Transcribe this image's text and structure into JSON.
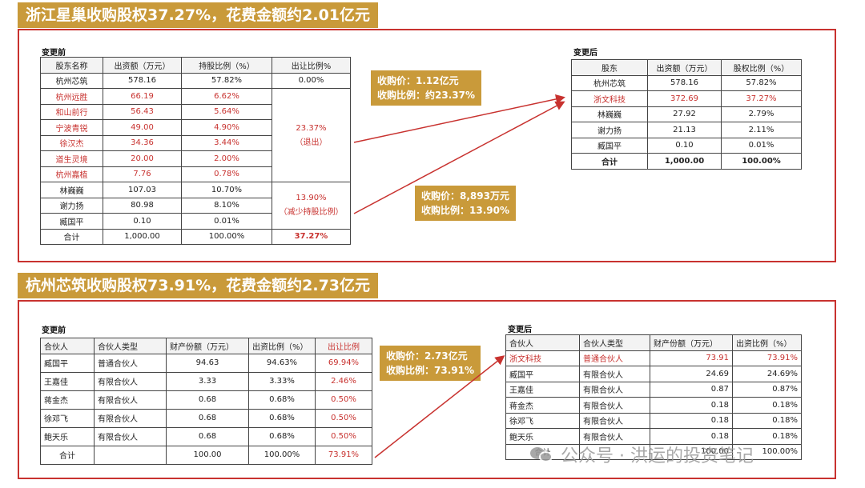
{
  "banner1": "浙江星巢收购股权37.27%，花费金额约2.01亿元",
  "banner2": "杭州芯筑收购股权73.91%，花费金额约2.73亿元",
  "s1": {
    "before_label": "变更前",
    "before_headers": [
      "股东名称",
      "出资额（万元）",
      "持股比例（%）",
      "出让比例%"
    ],
    "before_rows": [
      [
        "杭州芯筑",
        "578.16",
        "57.82%"
      ],
      [
        "杭州远胜",
        "66.19",
        "6.62%"
      ],
      [
        "和山前行",
        "56.43",
        "5.64%"
      ],
      [
        "宁波青锐",
        "49.00",
        "4.90%"
      ],
      [
        "徐汉杰",
        "34.36",
        "3.44%"
      ],
      [
        "道生灵境",
        "20.00",
        "2.00%"
      ],
      [
        "杭州嘉植",
        "7.76",
        "0.78%"
      ],
      [
        "林巍巍",
        "107.03",
        "10.70%"
      ],
      [
        "谢力扬",
        "80.98",
        "8.10%"
      ],
      [
        "臧国平",
        "0.10",
        "0.01%"
      ]
    ],
    "before_transfer": [
      "0.00%",
      "23.37%",
      "（退出）",
      "13.90%",
      "（减少持股比例）"
    ],
    "before_total": [
      "合计",
      "1,000.00",
      "100.00%",
      "37.27%"
    ],
    "callout1": [
      "收购价：1.12亿元",
      "收购比例：约23.37%"
    ],
    "callout2": [
      "收购价：8,893万元",
      "收购比例：13.90%"
    ],
    "after_label": "变更后",
    "after_headers": [
      "股东",
      "出资额（万元）",
      "股权比例（%）"
    ],
    "after_rows": [
      [
        "杭州芯筑",
        "578.16",
        "57.82%"
      ],
      [
        "浙文科技",
        "372.69",
        "37.27%"
      ],
      [
        "林巍巍",
        "27.92",
        "2.79%"
      ],
      [
        "谢力扬",
        "21.13",
        "2.11%"
      ],
      [
        "臧国平",
        "0.10",
        "0.01%"
      ]
    ],
    "after_total": [
      "合计",
      "1,000.00",
      "100.00%"
    ]
  },
  "s2": {
    "before_label": "变更前",
    "before_headers": [
      "合伙人",
      "合伙人类型",
      "财产份额（万元）",
      "出资比例（%）",
      "出让比例"
    ],
    "before_rows": [
      [
        "臧国平",
        "普通合伙人",
        "94.63",
        "94.63%",
        "69.94%"
      ],
      [
        "王嘉佳",
        "有限合伙人",
        "3.33",
        "3.33%",
        "2.46%"
      ],
      [
        "蒋金杰",
        "有限合伙人",
        "0.68",
        "0.68%",
        "0.50%"
      ],
      [
        "徐邓飞",
        "有限合伙人",
        "0.68",
        "0.68%",
        "0.50%"
      ],
      [
        "鲍天乐",
        "有限合伙人",
        "0.68",
        "0.68%",
        "0.50%"
      ]
    ],
    "before_total": [
      "合计",
      "",
      "100.00",
      "100.00%",
      "73.91%"
    ],
    "callout": [
      "收购价：2.73亿元",
      "收购比例：73.91%"
    ],
    "after_label": "变更后",
    "after_headers": [
      "合伙人",
      "合伙人类型",
      "财产份额（万元）",
      "出资比例（%）"
    ],
    "after_rows": [
      [
        "浙文科技",
        "普通合伙人",
        "73.91",
        "73.91%"
      ],
      [
        "臧国平",
        "有限合伙人",
        "24.69",
        "24.69%"
      ],
      [
        "王嘉佳",
        "有限合伙人",
        "0.87",
        "0.87%"
      ],
      [
        "蒋金杰",
        "有限合伙人",
        "0.18",
        "0.18%"
      ],
      [
        "徐邓飞",
        "有限合伙人",
        "0.18",
        "0.18%"
      ],
      [
        "鲍天乐",
        "有限合伙人",
        "0.18",
        "0.18%"
      ]
    ],
    "after_total": [
      "合计",
      "",
      "100.00",
      "100.00%"
    ]
  },
  "watermark": "公众号 · 洪运的投资笔记",
  "colors": {
    "accent": "#c99a3a",
    "red": "#c8322f"
  }
}
